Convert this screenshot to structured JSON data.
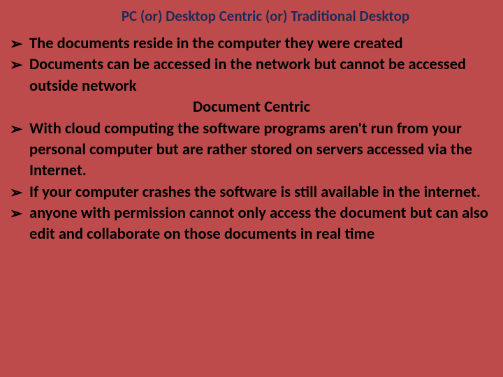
{
  "slide": {
    "background_color": "#bd4b4b",
    "title_color": "#1f2a5a",
    "text_color": "#000000",
    "bullet_glyph": "➢",
    "title": "PC (or) Desktop Centric  (or)  Traditional Desktop",
    "title_fontsize": 21,
    "body_fontsize": 22.5,
    "items": [
      {
        "type": "bullet",
        "text": "The documents reside in the computer they were created"
      },
      {
        "type": "bullet",
        "text": "Documents can be  accessed in the network but cannot be accessed outside network"
      },
      {
        "type": "subheading",
        "text": "Document Centric"
      },
      {
        "type": "bullet",
        "text": " With cloud computing the software programs aren't run from your personal computer but are rather stored on servers accessed via the Internet."
      },
      {
        "type": "bullet",
        "text": "If your computer crashes the software is still available in the internet."
      },
      {
        "type": "bullet",
        "text": "anyone with permission cannot only access the document but can also edit and collaborate on those documents in real time"
      }
    ]
  }
}
